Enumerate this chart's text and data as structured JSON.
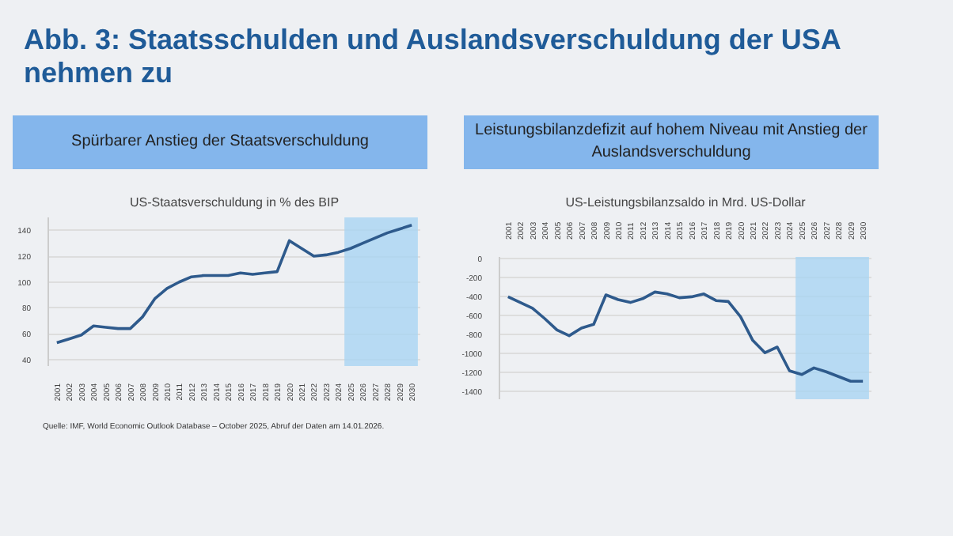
{
  "chart_data": [
    {
      "type": "line",
      "title": "US-Staatsverschuldung in % des BIP",
      "subtitle": "Spürbarer Anstieg der Staatsverschuldung",
      "annotations": [
        "Abb. 3: Staatsschulden und Auslandsverschuldung der USA nehmen zu",
        "Quelle: IMF, World Economic Outlook Database – October 2025, Abruf der Daten am 14.01.2026."
      ],
      "categories": [
        "2001",
        "2002",
        "2003",
        "2004",
        "2005",
        "2006",
        "2007",
        "2008",
        "2009",
        "2010",
        "2011",
        "2012",
        "2013",
        "2014",
        "2015",
        "2016",
        "2017",
        "2018",
        "2019",
        "2020",
        "2021",
        "2022",
        "2023",
        "2024",
        "2025",
        "2026",
        "2027",
        "2028",
        "2029",
        "2030"
      ],
      "values": [
        53,
        56,
        59,
        66,
        65,
        64,
        64,
        73,
        87,
        95,
        100,
        104,
        105,
        105,
        105,
        107,
        106,
        107,
        108,
        132,
        126,
        120,
        121,
        123,
        126,
        130,
        134,
        138,
        141,
        144
      ],
      "color": "#2e5a8c",
      "ylim": [
        35,
        150
      ],
      "yticks": [
        40,
        60,
        80,
        100,
        120,
        140
      ],
      "grid": "y",
      "bands": [
        {
          "axis": "x",
          "from": "2025",
          "to": "2030",
          "color": "#a9d4f2"
        }
      ]
    },
    {
      "type": "line",
      "title": "US-Leistungsbilanzsaldo in Mrd. US-Dollar",
      "subtitle": "Leistungsbilanzdefizit auf hohem Niveau mit Anstieg der Auslandsverschuldung",
      "categories": [
        "2001",
        "2002",
        "2003",
        "2004",
        "2005",
        "2006",
        "2007",
        "2008",
        "2009",
        "2010",
        "2011",
        "2012",
        "2013",
        "2014",
        "2015",
        "2016",
        "2017",
        "2018",
        "2019",
        "2020",
        "2021",
        "2022",
        "2023",
        "2024",
        "2025",
        "2026",
        "2027",
        "2028",
        "2029",
        "2030"
      ],
      "values": [
        -400,
        -460,
        -520,
        -630,
        -750,
        -810,
        -730,
        -690,
        -380,
        -430,
        -460,
        -420,
        -350,
        -370,
        -410,
        -400,
        -370,
        -440,
        -450,
        -610,
        -860,
        -990,
        -930,
        -1180,
        -1220,
        -1150,
        -1190,
        -1240,
        -1290,
        -1290
      ],
      "color": "#2e5a8c",
      "ylim": [
        -1480,
        20
      ],
      "yticks": [
        0,
        -200,
        -400,
        -600,
        -800,
        -1000,
        -1200,
        -1400
      ],
      "grid": "y",
      "bands": [
        {
          "axis": "x",
          "from": "2025",
          "to": "2030",
          "color": "#a9d4f2"
        }
      ]
    }
  ]
}
